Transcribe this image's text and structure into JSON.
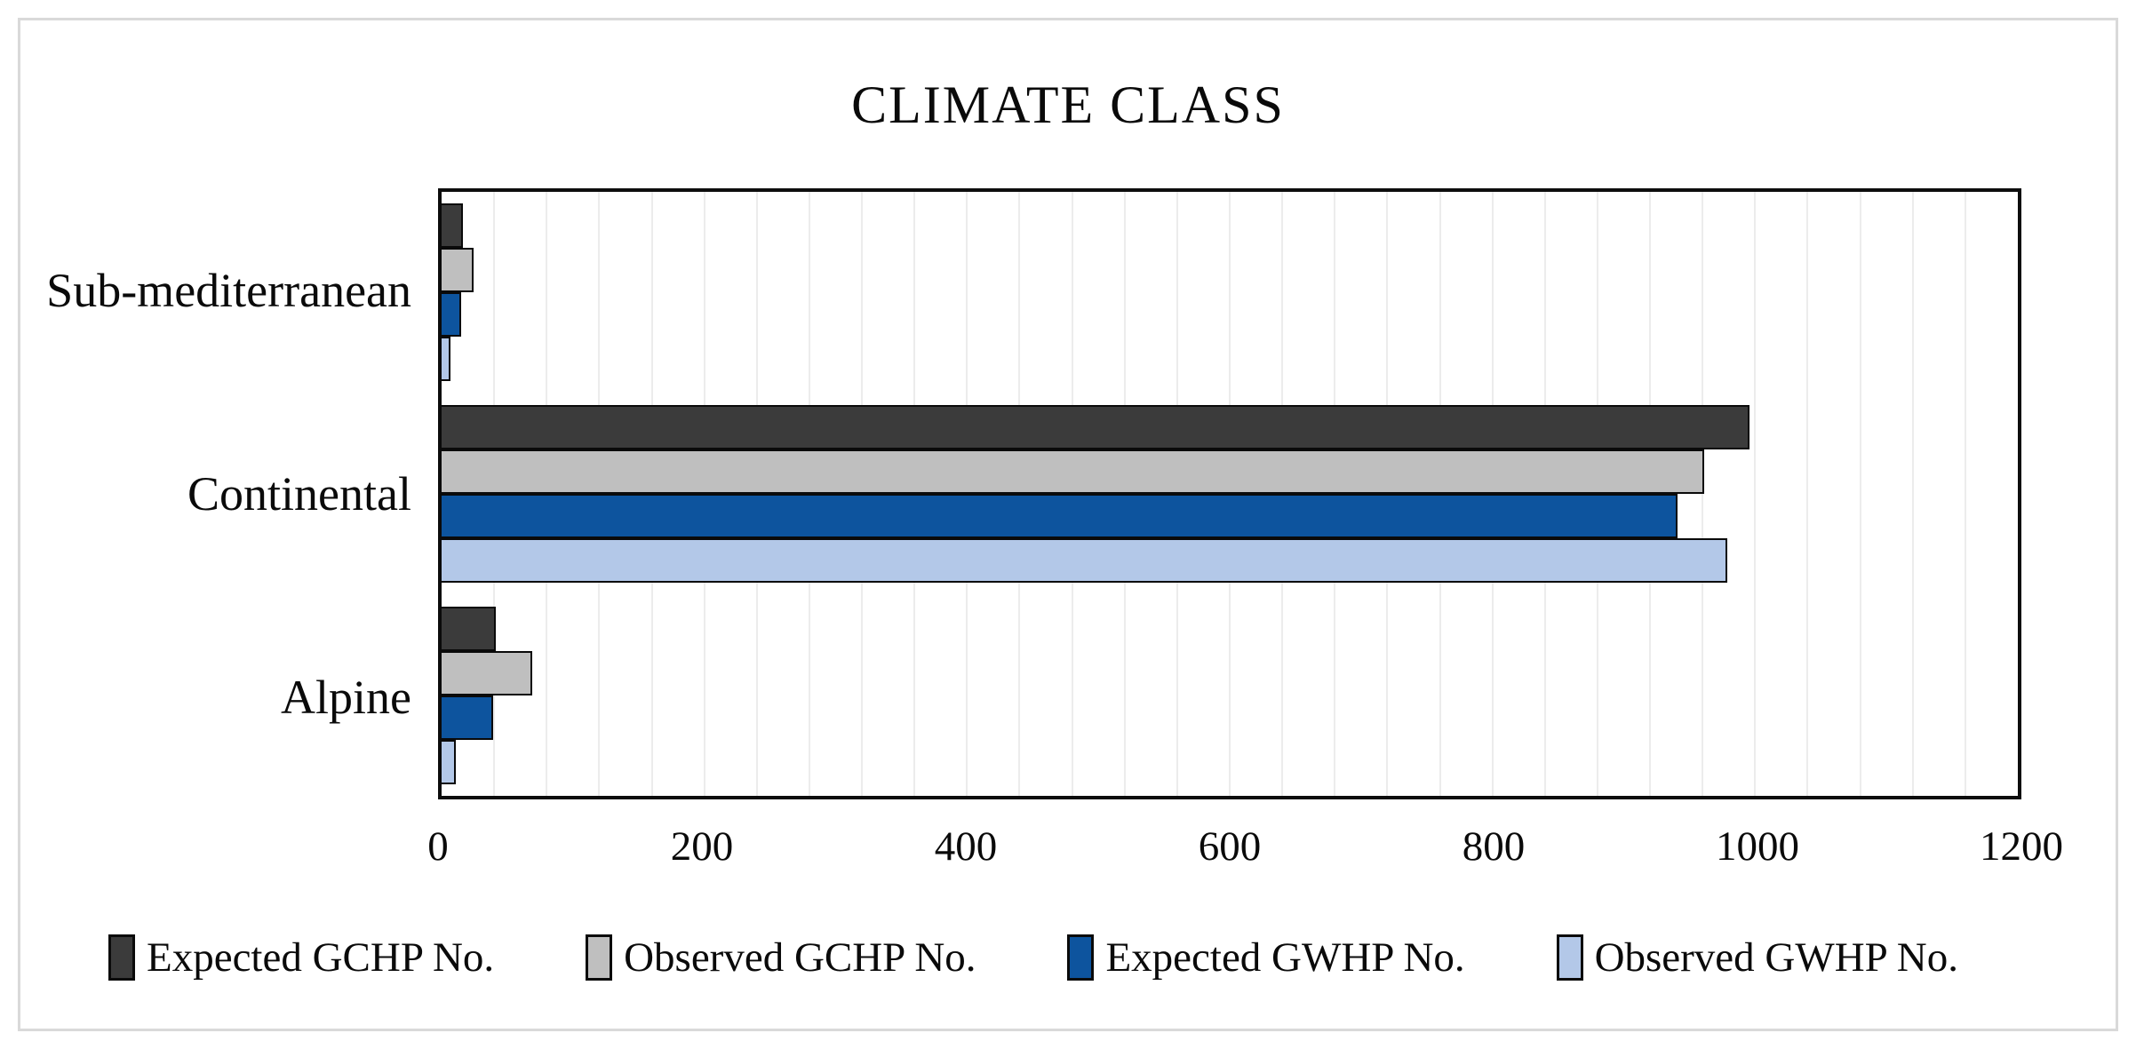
{
  "title": "CLIMATE CLASS",
  "chart_data": {
    "type": "bar",
    "orientation": "horizontal",
    "title": "CLIMATE CLASS",
    "categories": [
      "Sub-mediterranean",
      "Continental",
      "Alpine"
    ],
    "series": [
      {
        "name": "Expected GCHP No.",
        "color": "#3b3b3b",
        "values": [
          15,
          995,
          40
        ]
      },
      {
        "name": "Observed GCHP No.",
        "color": "#bfbfbf",
        "values": [
          23,
          960,
          68
        ]
      },
      {
        "name": "Expected GWHP No.",
        "color": "#0d549e",
        "values": [
          14,
          940,
          38
        ]
      },
      {
        "name": "Observed GWHP No.",
        "color": "#b3c8e8",
        "values": [
          6,
          978,
          10
        ]
      }
    ],
    "xlim": [
      0,
      1200
    ],
    "x_ticks": [
      0,
      200,
      400,
      600,
      800,
      1000,
      1200
    ],
    "x_minor_gridline_unit": 40,
    "gridline_color": "#ececec",
    "bar_outline_color": "#0a0a0a",
    "legend_position": "bottom",
    "grid": "vertical-minor"
  }
}
